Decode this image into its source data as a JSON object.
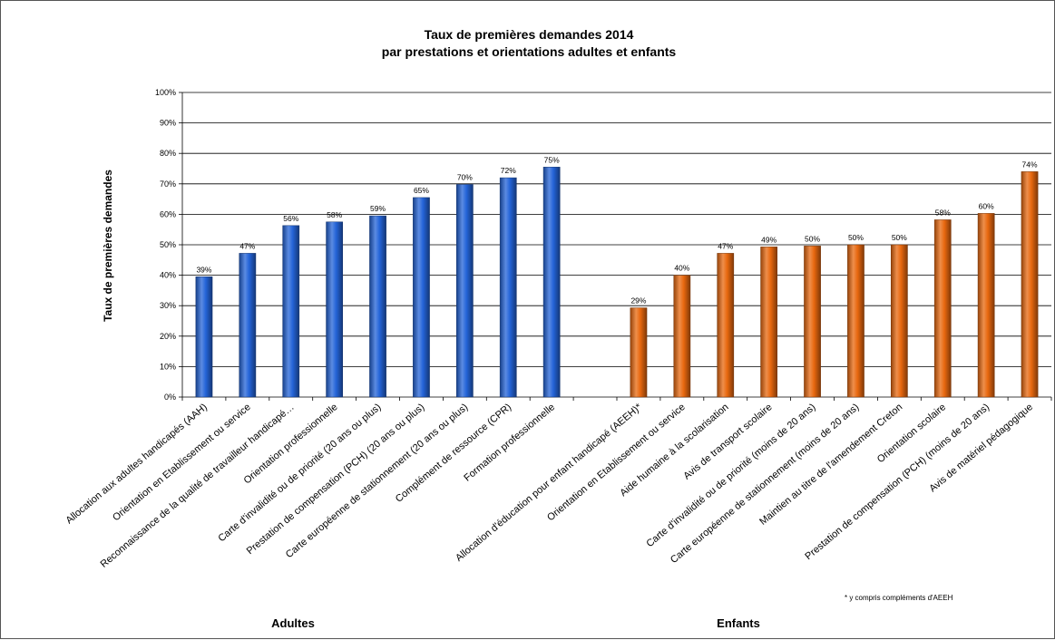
{
  "chart_data": {
    "type": "bar",
    "title": "Taux de premières demandes  2014",
    "subtitle": "par prestations et orientations  adultes et enfants",
    "ylabel": "Taux de premières demandes",
    "ylim": [
      0,
      100
    ],
    "yticks": [
      "0%",
      "10%",
      "20%",
      "30%",
      "40%",
      "50%",
      "60%",
      "70%",
      "80%",
      "90%",
      "100%"
    ],
    "grid": true,
    "footnote": "* y compris compléments d'AEEH",
    "groups": [
      {
        "name": "Adultes",
        "color": "#2464d8",
        "categories": [
          "Allocation aux adultes handicapés (AAH)",
          "Orientation en Etablissement ou service",
          "Reconnaissance de la qualité de travailleur handicapé…",
          "Orientation professionnelle",
          "Carte d'invalidité ou de priorité (20 ans ou plus)",
          "Prestation de compensation (PCH) (20 ans ou plus)",
          "Carte européenne de stationnement (20 ans ou plus)",
          "Complément de ressource (CPR)",
          "Formation professionnelle"
        ],
        "values": [
          39.5,
          47.2,
          56.3,
          57.5,
          59.5,
          65.5,
          69.8,
          72.0,
          75.5
        ],
        "labels": [
          "39%",
          "47%",
          "56%",
          "58%",
          "59%",
          "65%",
          "70%",
          "72%",
          "75%"
        ]
      },
      {
        "name": "Enfants",
        "color": "#e8680f",
        "categories": [
          "Allocation d'éducation pour enfant handicapé (AEEH)*",
          "Orientation en Etablissement ou service",
          "Aide humaine à la scolarisation",
          "Avis de transport scolaire",
          "Carte d'invalidité ou de priorité (moins de 20 ans)",
          "Carte européenne de stationnement (moins de 20 ans)",
          "Maintien au titre de l'amendement Creton",
          "Orientation scolaire",
          "Prestation de compensation (PCH) (moins de 20 ans)",
          "Avis de matériel pédagogique"
        ],
        "values": [
          29.3,
          40.0,
          47.2,
          49.3,
          49.6,
          50.0,
          50.0,
          58.2,
          60.3,
          74.0
        ],
        "labels": [
          "29%",
          "40%",
          "47%",
          "49%",
          "50%",
          "50%",
          "50%",
          "58%",
          "60%",
          "74%"
        ]
      }
    ]
  }
}
